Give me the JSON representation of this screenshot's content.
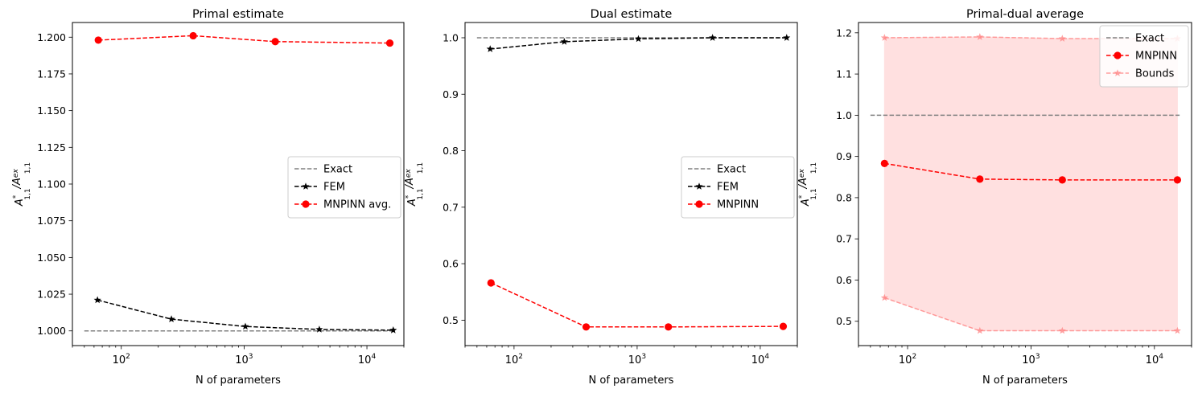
{
  "chart_data": [
    {
      "type": "line",
      "title": "Primal estimate",
      "xlabel": "N of parameters",
      "ylabel": "A*1,1/Aex1,1",
      "xscale": "log",
      "xlim": [
        40,
        20000
      ],
      "ylim": [
        0.99,
        1.21
      ],
      "xticks": [
        {
          "v": 100,
          "mant": "10",
          "exp": "2"
        },
        {
          "v": 1000,
          "mant": "10",
          "exp": "3"
        },
        {
          "v": 10000,
          "mant": "10",
          "exp": "4"
        }
      ],
      "yticks": [
        {
          "v": 1.0,
          "label": "1.000"
        },
        {
          "v": 1.025,
          "label": "1.025"
        },
        {
          "v": 1.05,
          "label": "1.050"
        },
        {
          "v": 1.075,
          "label": "1.075"
        },
        {
          "v": 1.1,
          "label": "1.100"
        },
        {
          "v": 1.125,
          "label": "1.125"
        },
        {
          "v": 1.15,
          "label": "1.150"
        },
        {
          "v": 1.175,
          "label": "1.175"
        },
        {
          "v": 1.2,
          "label": "1.200"
        }
      ],
      "legend_position": "center-right",
      "series": [
        {
          "name": "Exact",
          "style": "dashed",
          "marker": "none",
          "color": "#808080",
          "x": [
            50,
            16000
          ],
          "y": [
            1.0,
            1.0
          ]
        },
        {
          "name": "FEM",
          "style": "dashed",
          "marker": "star",
          "color": "#000000",
          "x": [
            64,
            256,
            1024,
            4096,
            16384
          ],
          "y": [
            1.021,
            1.008,
            1.003,
            1.001,
            1.0005
          ]
        },
        {
          "name": "MNPINN avg.",
          "style": "dashed",
          "marker": "circle",
          "color": "#ff0000",
          "x": [
            65,
            385,
            1793,
            15361
          ],
          "y": [
            1.198,
            1.201,
            1.197,
            1.196
          ]
        }
      ]
    },
    {
      "type": "line",
      "title": "Dual estimate",
      "xlabel": "N of parameters",
      "ylabel": "A*1,1/Aex1,1",
      "xscale": "log",
      "xlim": [
        40,
        20000
      ],
      "ylim": [
        0.455,
        1.027
      ],
      "xticks": [
        {
          "v": 100,
          "mant": "10",
          "exp": "2"
        },
        {
          "v": 1000,
          "mant": "10",
          "exp": "3"
        },
        {
          "v": 10000,
          "mant": "10",
          "exp": "4"
        }
      ],
      "yticks": [
        {
          "v": 0.5,
          "label": "0.5"
        },
        {
          "v": 0.6,
          "label": "0.6"
        },
        {
          "v": 0.7,
          "label": "0.7"
        },
        {
          "v": 0.8,
          "label": "0.8"
        },
        {
          "v": 0.9,
          "label": "0.9"
        },
        {
          "v": 1.0,
          "label": "1.0"
        }
      ],
      "legend_position": "center-right",
      "series": [
        {
          "name": "Exact",
          "style": "dashed",
          "marker": "none",
          "color": "#808080",
          "x": [
            50,
            16000
          ],
          "y": [
            1.0,
            1.0
          ]
        },
        {
          "name": "FEM",
          "style": "dashed",
          "marker": "star",
          "color": "#000000",
          "x": [
            64,
            256,
            1024,
            4096,
            16384
          ],
          "y": [
            0.98,
            0.993,
            0.998,
            1.0,
            1.0
          ]
        },
        {
          "name": "MNPINN",
          "style": "dashed",
          "marker": "circle",
          "color": "#ff0000",
          "x": [
            65,
            385,
            1793,
            15361
          ],
          "y": [
            0.566,
            0.488,
            0.488,
            0.489
          ]
        }
      ]
    },
    {
      "type": "line",
      "title": "Primal-dual average",
      "xlabel": "N of parameters",
      "ylabel": "A*1,1/Aex1,1",
      "xscale": "log",
      "xlim": [
        40,
        20000
      ],
      "ylim": [
        0.441,
        1.225
      ],
      "xticks": [
        {
          "v": 100,
          "mant": "10",
          "exp": "2"
        },
        {
          "v": 1000,
          "mant": "10",
          "exp": "3"
        },
        {
          "v": 10000,
          "mant": "10",
          "exp": "4"
        }
      ],
      "yticks": [
        {
          "v": 0.5,
          "label": "0.5"
        },
        {
          "v": 0.6,
          "label": "0.6"
        },
        {
          "v": 0.7,
          "label": "0.7"
        },
        {
          "v": 0.8,
          "label": "0.8"
        },
        {
          "v": 0.9,
          "label": "0.9"
        },
        {
          "v": 1.0,
          "label": "1.0"
        },
        {
          "v": 1.1,
          "label": "1.1"
        },
        {
          "v": 1.2,
          "label": "1.2"
        }
      ],
      "legend_position": "upper-right",
      "band": {
        "color": "#ffcccc",
        "x": [
          65,
          385,
          1793,
          15361
        ],
        "lower": [
          0.557,
          0.477,
          0.477,
          0.477
        ],
        "upper": [
          1.188,
          1.19,
          1.186,
          1.186
        ]
      },
      "series": [
        {
          "name": "Exact",
          "style": "dashed",
          "marker": "none",
          "color": "#808080",
          "x": [
            50,
            16000
          ],
          "y": [
            1.0,
            1.0
          ]
        },
        {
          "name": "MNPINN",
          "style": "dashed",
          "marker": "circle",
          "color": "#ff0000",
          "x": [
            65,
            385,
            1793,
            15361
          ],
          "y": [
            0.883,
            0.845,
            0.843,
            0.843
          ]
        },
        {
          "name": "Bounds",
          "style": "dashed",
          "marker": "star",
          "color": "#ff8080",
          "x": [
            65,
            385,
            1793,
            15361
          ],
          "y": [
            1.188,
            1.19,
            1.186,
            1.186
          ],
          "y2": [
            0.557,
            0.477,
            0.477,
            0.477
          ]
        }
      ]
    }
  ]
}
